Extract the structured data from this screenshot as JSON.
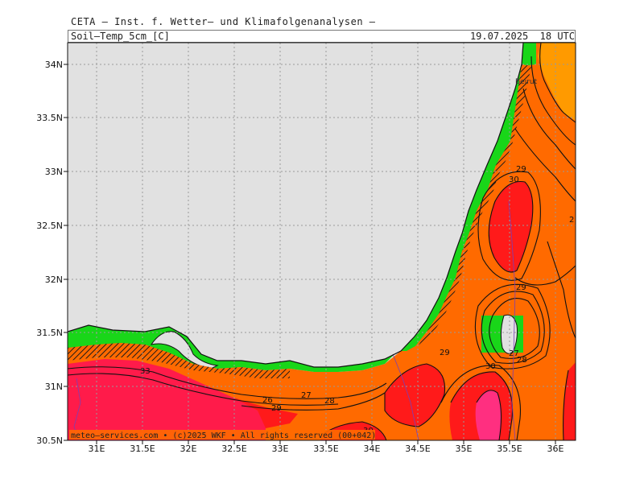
{
  "header": {
    "title": "CETA – Inst. f. Wetter– und Klimafolgenanalysen –",
    "field": "Soil–Temp_5cm_[C]",
    "valid_time": "19.07.2025  18 UTC"
  },
  "axes": {
    "lon_ticks": [
      "31E",
      "31.5E",
      "32E",
      "32.5E",
      "33E",
      "33.5E",
      "34E",
      "34.5E",
      "35E",
      "35.5E",
      "36E"
    ],
    "lat_ticks": [
      "34N",
      "33.5N",
      "33N",
      "32.5N",
      "32N",
      "31.5N",
      "31N",
      "30.5N"
    ]
  },
  "colors": {
    "sea": "#e1e1e1",
    "green": "#19d619",
    "orange": "#ff6a00",
    "light_orange": "#ff9a00",
    "red": "#ff1a1a",
    "crimson": "#ff1b4a",
    "pink": "#ff2f80"
  },
  "contour_labels": [
    "33",
    "26",
    "27",
    "28",
    "29",
    "30",
    "29",
    "30",
    "29",
    "27",
    "28",
    "29",
    "30",
    "2"
  ],
  "places": {
    "beirut": "Beirut"
  },
  "credit": "meteo–services.com • (c)2025 WKF • All rights reserved (00+042)"
}
